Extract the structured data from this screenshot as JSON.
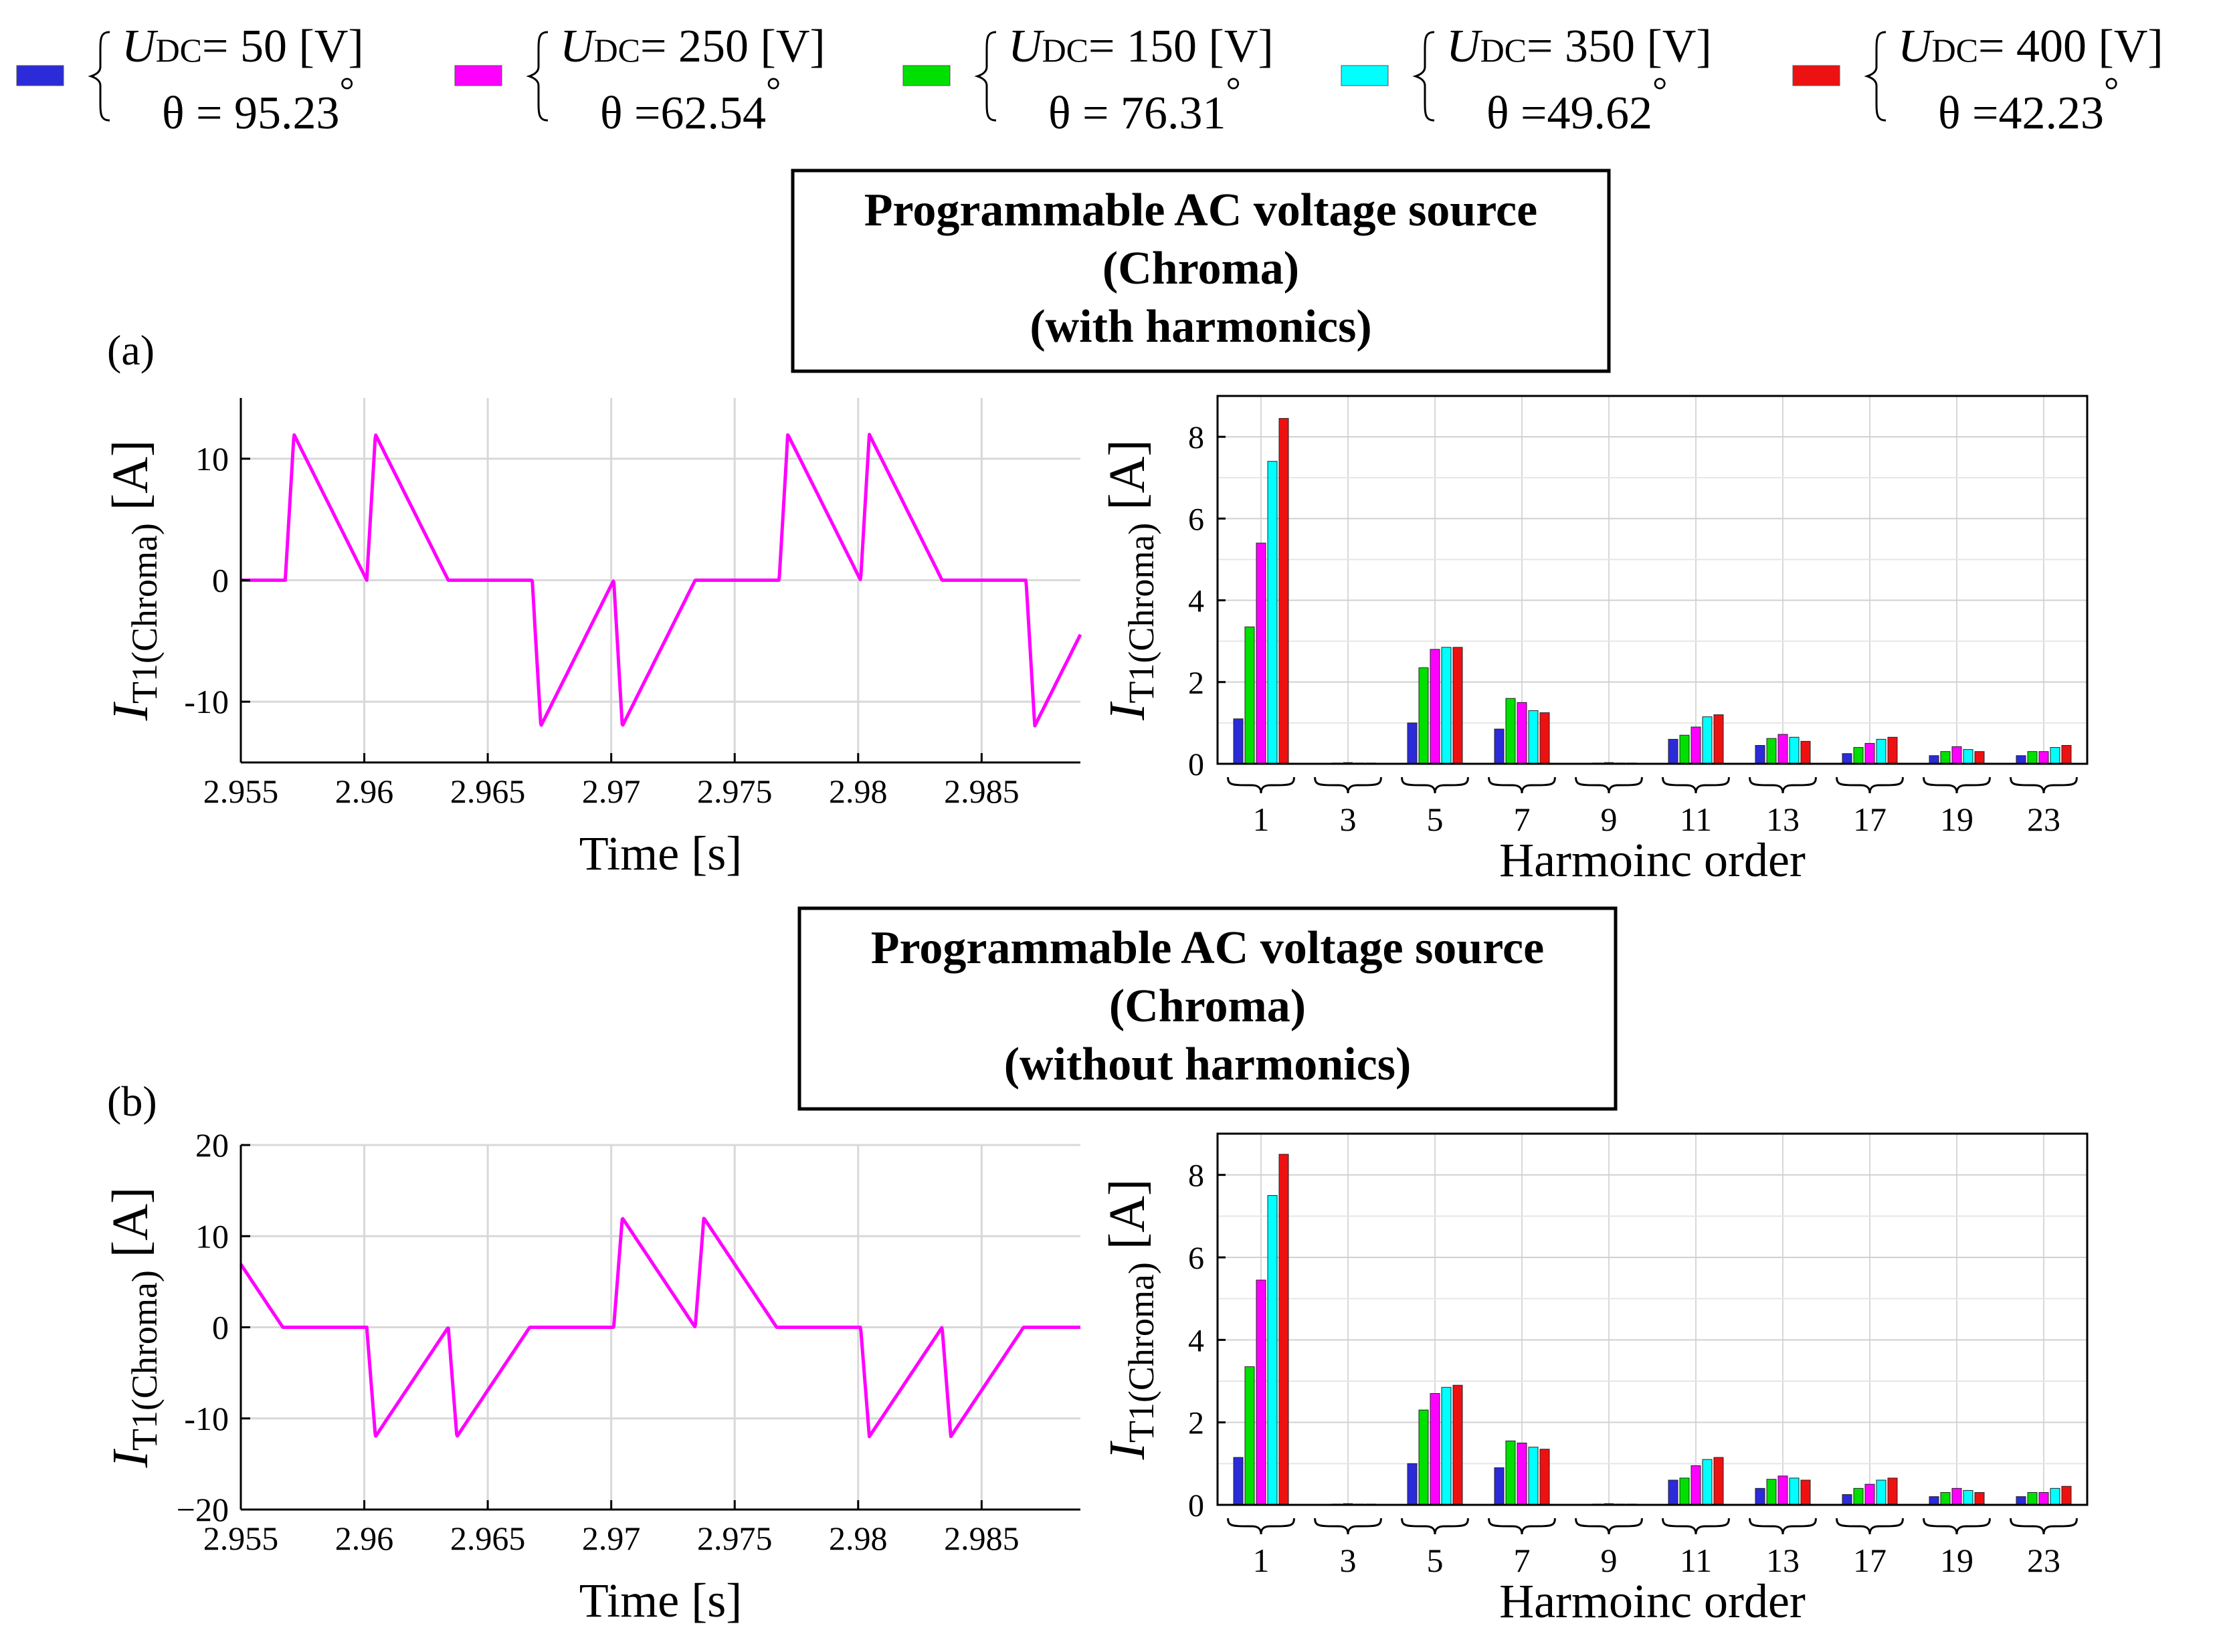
{
  "legend": [
    {
      "color": "#2b2bd9",
      "udc_symbol": "U",
      "udc_sub": "DC",
      "udc_value": "= 50  [V]",
      "theta_symbol": "θ",
      "theta_value": "= 95.23",
      "degree": "°"
    },
    {
      "color": "#ff00ff",
      "udc_symbol": "U",
      "udc_sub": "DC",
      "udc_value": "= 250 [V]",
      "theta_symbol": "θ",
      "theta_value": "=62.54",
      "degree": "°"
    },
    {
      "color": "#00e000",
      "udc_symbol": "U",
      "udc_sub": "DC",
      "udc_value": "= 150 [V]",
      "theta_symbol": "θ",
      "theta_value": "= 76.31",
      "degree": "°"
    },
    {
      "color": "#00ffff",
      "udc_symbol": "U",
      "udc_sub": "DC",
      "udc_value": "= 350 [V]",
      "theta_symbol": "θ",
      "theta_value": "=49.62",
      "degree": "°"
    },
    {
      "color": "#ee1111",
      "udc_symbol": "U",
      "udc_sub": "DC",
      "udc_value": "=  400 [V]",
      "theta_symbol": "θ",
      "theta_value": "=42.23",
      "degree": "°"
    }
  ],
  "panels": [
    {
      "label": "(a)",
      "box_lines": [
        "Programmable AC voltage source",
        "(Chroma)",
        "(with harmonics)"
      ]
    },
    {
      "label": "(b)",
      "box_lines": [
        "Programmable AC voltage source",
        "(Chroma)",
        "(without harmonics)"
      ]
    }
  ],
  "chart_data": [
    {
      "id": "a-time",
      "type": "line",
      "xlabel": "Time [s]",
      "ylabel_main": "I",
      "ylabel_sub": "T1(Chroma)",
      "ylabel_unit": " [A]",
      "xlim": [
        2.955,
        2.989
      ],
      "ylim": [
        -15,
        15
      ],
      "xticks": [
        2.955,
        2.96,
        2.965,
        2.97,
        2.975,
        2.98,
        2.985
      ],
      "xtick_labels": [
        "2.955",
        "2.96",
        "2.965",
        "2.97",
        "2.975",
        "2.98",
        "2.985"
      ],
      "yticks": [
        -10,
        0,
        10
      ],
      "ytick_labels": [
        "-10",
        "0",
        "10"
      ],
      "grid": true,
      "series": [
        {
          "color": "#ff00ff",
          "period": 0.02,
          "t0": 2.9535
        }
      ]
    },
    {
      "id": "a-harm",
      "type": "bar",
      "xlabel": "Harmoinc order",
      "ylabel_main": "I",
      "ylabel_sub": "T1(Chroma)",
      "ylabel_unit": " [A]",
      "ylim": [
        0,
        9
      ],
      "yticks": [
        0,
        2,
        4,
        6,
        8
      ],
      "ytick_labels": [
        "0",
        "2",
        "4",
        "6",
        "8"
      ],
      "grid": true,
      "categories": [
        "1",
        "3",
        "5",
        "7",
        "9",
        "11",
        "13",
        "17",
        "19",
        "23"
      ],
      "series": [
        {
          "color": "#2b2bd9",
          "values": [
            1.1,
            0.0,
            1.0,
            0.85,
            0.0,
            0.6,
            0.45,
            0.25,
            0.2,
            0.2
          ]
        },
        {
          "color": "#00e000",
          "values": [
            3.35,
            0.02,
            2.35,
            1.6,
            0.02,
            0.7,
            0.62,
            0.4,
            0.3,
            0.3
          ]
        },
        {
          "color": "#ff00ff",
          "values": [
            5.4,
            0.03,
            2.8,
            1.5,
            0.03,
            0.9,
            0.72,
            0.5,
            0.42,
            0.3
          ]
        },
        {
          "color": "#00ffff",
          "values": [
            7.4,
            0.02,
            2.85,
            1.3,
            0.02,
            1.15,
            0.65,
            0.6,
            0.35,
            0.4
          ]
        },
        {
          "color": "#ee1111",
          "values": [
            8.45,
            0.02,
            2.85,
            1.25,
            0.02,
            1.2,
            0.55,
            0.65,
            0.3,
            0.45
          ]
        }
      ]
    },
    {
      "id": "b-time",
      "type": "line",
      "xlabel": "Time [s]",
      "ylabel_main": "I",
      "ylabel_sub": "T1(Chroma)",
      "ylabel_unit": " [A]",
      "xlim": [
        2.955,
        2.989
      ],
      "ylim": [
        -20,
        20
      ],
      "xticks": [
        2.955,
        2.96,
        2.965,
        2.97,
        2.975,
        2.98,
        2.985
      ],
      "xtick_labels": [
        "2.955",
        "2.96",
        "2.965",
        "2.97",
        "2.975",
        "2.98",
        "2.985"
      ],
      "yticks": [
        -20,
        -10,
        0,
        10,
        20
      ],
      "ytick_labels": [
        "−20",
        "-10",
        "0",
        "10",
        "20"
      ],
      "grid": true,
      "series": [
        {
          "color": "#ff00ff",
          "period": 0.02,
          "t0": 2.9468
        }
      ]
    },
    {
      "id": "b-harm",
      "type": "bar",
      "xlabel": "Harmoinc order",
      "ylabel_main": "I",
      "ylabel_sub": "T1(Chroma)",
      "ylabel_unit": " [A]",
      "ylim": [
        0,
        9
      ],
      "yticks": [
        0,
        2,
        4,
        6,
        8
      ],
      "ytick_labels": [
        "0",
        "2",
        "4",
        "6",
        "8"
      ],
      "grid": true,
      "categories": [
        "1",
        "3",
        "5",
        "7",
        "9",
        "11",
        "13",
        "17",
        "19",
        "23"
      ],
      "series": [
        {
          "color": "#2b2bd9",
          "values": [
            1.15,
            0.0,
            1.0,
            0.9,
            0.0,
            0.6,
            0.4,
            0.25,
            0.2,
            0.2
          ]
        },
        {
          "color": "#00e000",
          "values": [
            3.35,
            0.02,
            2.3,
            1.55,
            0.02,
            0.65,
            0.62,
            0.4,
            0.3,
            0.3
          ]
        },
        {
          "color": "#ff00ff",
          "values": [
            5.45,
            0.03,
            2.7,
            1.5,
            0.03,
            0.95,
            0.7,
            0.5,
            0.4,
            0.3
          ]
        },
        {
          "color": "#00ffff",
          "values": [
            7.5,
            0.02,
            2.85,
            1.4,
            0.02,
            1.1,
            0.65,
            0.6,
            0.35,
            0.4
          ]
        },
        {
          "color": "#ee1111",
          "values": [
            8.5,
            0.02,
            2.9,
            1.35,
            0.02,
            1.15,
            0.6,
            0.65,
            0.3,
            0.45
          ]
        }
      ]
    }
  ]
}
